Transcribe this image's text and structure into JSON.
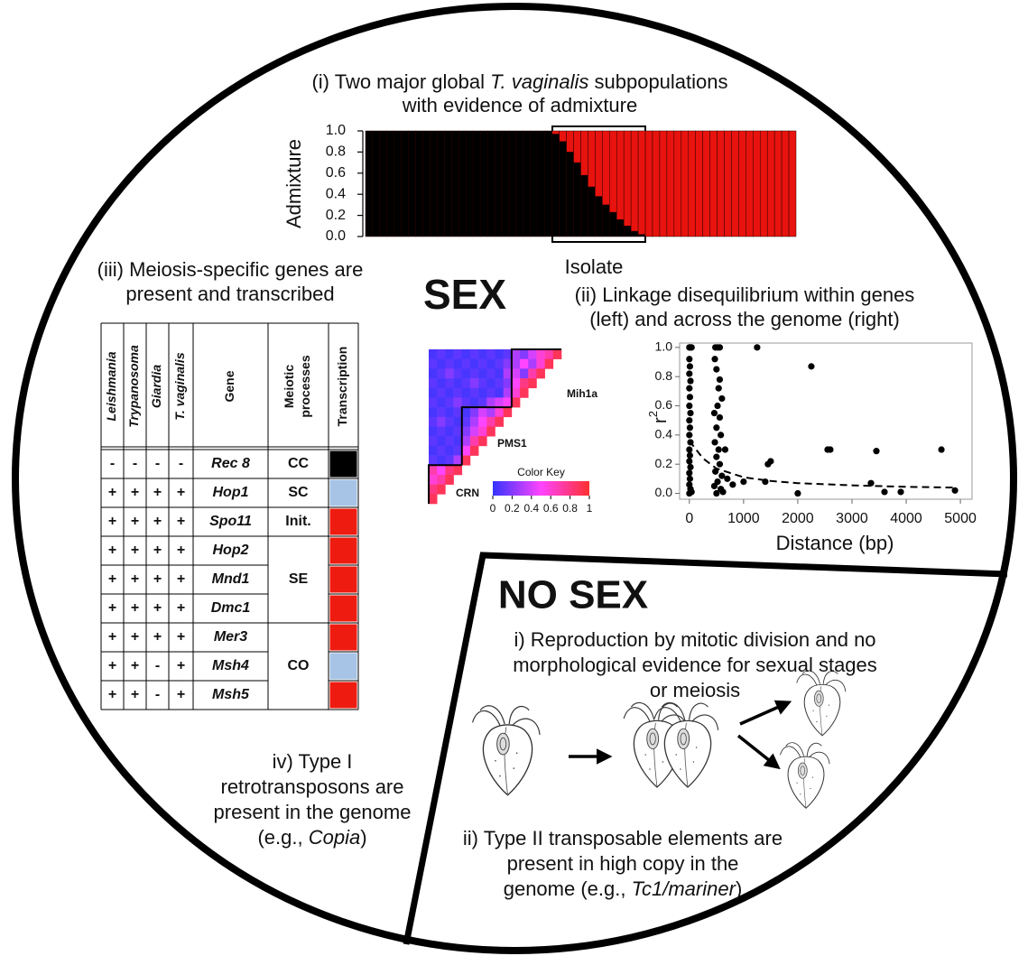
{
  "sex": {
    "heading": "SEX",
    "meiosis_caption": [
      "(iii) Meiosis-specific genes are",
      "present and transcribed"
    ],
    "ld_caption": [
      "(ii) Linkage disequilibrium within genes",
      "(left) and across the genome (right)"
    ],
    "retro_caption": [
      "iv) Type I",
      "retrotransposons are",
      "present in the genome",
      [
        {
          "t": "(e.g., "
        },
        {
          "t": "Copia",
          "i": true
        },
        {
          "t": ")"
        }
      ]
    ]
  },
  "no_sex": {
    "heading": "NO SEX",
    "reproduction_caption": [
      "i) Reproduction by mitotic division and no",
      "morphological evidence for sexual stages",
      "or meiosis"
    ],
    "transposon_caption": [
      "ii) Type II transposable elements are",
      "present in high copy in the",
      [
        {
          "t": "genome (e.g., "
        },
        {
          "t": "Tc1/mariner",
          "i": true
        },
        {
          "t": ")"
        }
      ]
    ]
  },
  "table": {
    "header": [
      "Leishmania",
      "Trypanosoma",
      "Giardia",
      "T. vaginalis",
      "Gene",
      [
        "Meiotic",
        "processes"
      ],
      "Transcription"
    ],
    "rows": [
      {
        "signs": [
          "-",
          "-",
          "-",
          "-"
        ],
        "gene": "Rec 8",
        "color": "#000000"
      },
      {
        "signs": [
          "+",
          "+",
          "+",
          "+"
        ],
        "gene": "Hop1",
        "color": "#a7c4e6"
      },
      {
        "signs": [
          "+",
          "+",
          "+",
          "+"
        ],
        "gene": "Spo11",
        "color": "#ee1c10"
      },
      {
        "signs": [
          "+",
          "+",
          "+",
          "+"
        ],
        "gene": "Hop2",
        "color": "#ee1c10"
      },
      {
        "signs": [
          "+",
          "+",
          "+",
          "+"
        ],
        "gene": "Mnd1",
        "color": "#ee1c10"
      },
      {
        "signs": [
          "+",
          "+",
          "+",
          "+"
        ],
        "gene": "Dmc1",
        "color": "#ee1c10"
      },
      {
        "signs": [
          "+",
          "+",
          "+",
          "+"
        ],
        "gene": "Mer3",
        "color": "#ee1c10"
      },
      {
        "signs": [
          "+",
          "+",
          "-",
          "+"
        ],
        "gene": "Msh4",
        "color": "#a7c4e6"
      },
      {
        "signs": [
          "+",
          "+",
          "-",
          "+"
        ],
        "gene": "Msh5",
        "color": "#ee1c10"
      }
    ],
    "processes": [
      {
        "label": "CC",
        "rows": 1
      },
      {
        "label": "SC",
        "rows": 1
      },
      {
        "label": "Init.",
        "rows": 1
      },
      {
        "label": "SE",
        "rows": 3
      },
      {
        "label": "CO",
        "rows": 3
      }
    ]
  },
  "chart_data": [
    {
      "type": "bar",
      "stacked": true,
      "title": [
        [
          {
            "t": "(i) Two major global "
          },
          {
            "t": "T. vaginalis",
            "i": true
          },
          {
            "t": " subpopulations"
          }
        ],
        "with evidence of admixture"
      ],
      "xlabel": "Isolate",
      "ylabel": "Admixture",
      "categories": [
        null,
        null,
        null,
        null,
        null,
        null,
        null,
        null,
        null,
        null,
        null,
        null,
        null,
        null,
        null,
        null,
        null,
        null,
        null,
        null,
        null,
        null,
        null,
        null,
        null,
        null,
        null,
        null,
        null,
        null,
        null,
        null,
        null,
        null,
        null,
        null,
        null,
        null,
        null,
        null,
        null,
        null,
        null,
        null,
        null,
        null,
        null,
        null,
        null,
        null,
        null,
        null,
        null,
        null,
        null,
        null,
        null,
        null,
        null,
        null
      ],
      "series": [
        {
          "color": "#000000",
          "values": [
            1,
            1,
            1,
            1,
            1,
            1,
            1,
            1,
            1,
            1,
            1,
            1,
            1,
            1,
            1,
            1,
            1,
            1,
            1,
            1,
            1,
            1,
            1,
            1,
            1,
            1,
            0.97,
            0.9,
            0.8,
            0.7,
            0.58,
            0.47,
            0.38,
            0.3,
            0.23,
            0.16,
            0.1,
            0.05,
            0.02,
            0,
            0,
            0,
            0,
            0,
            0,
            0,
            0,
            0,
            0,
            0,
            0,
            0,
            0,
            0,
            0,
            0,
            0,
            0,
            0,
            0
          ]
        },
        {
          "color": "#e8130e",
          "values": [
            0,
            0,
            0,
            0,
            0,
            0,
            0,
            0,
            0,
            0,
            0,
            0,
            0,
            0,
            0,
            0,
            0,
            0,
            0,
            0,
            0,
            0,
            0,
            0,
            0,
            0,
            0.03,
            0.1,
            0.2,
            0.3,
            0.42,
            0.53,
            0.62,
            0.7,
            0.77,
            0.84,
            0.9,
            0.95,
            0.98,
            1,
            1,
            1,
            1,
            1,
            1,
            1,
            1,
            1,
            1,
            1,
            1,
            1,
            1,
            1,
            1,
            1,
            1,
            1,
            1,
            1
          ]
        }
      ],
      "ylim": [
        0,
        1
      ],
      "yticks": [
        {
          "value": 1,
          "label": "1.0"
        },
        0.8,
        0.6,
        0.4,
        0.2,
        {
          "value": 0,
          "label": "0.0"
        }
      ]
    },
    {
      "type": "heatmap",
      "values": [
        [
          0.05,
          0.1,
          0.05,
          0.1,
          0.05,
          0.1,
          0.05,
          0.1,
          0.05,
          0.1,
          0.3,
          0.2,
          0.4,
          0.6,
          0.7,
          0.9
        ],
        [
          0.1,
          0.05,
          0.1,
          0.05,
          0.1,
          0.05,
          0.1,
          0.05,
          0.1,
          0.2,
          0.3,
          0.5,
          0.3,
          0.6,
          0.9
        ],
        [
          0.05,
          0.1,
          0.2,
          0.1,
          0.05,
          0.1,
          0.05,
          0.1,
          0.05,
          0.3,
          0.4,
          0.2,
          0.7,
          0.9
        ],
        [
          0.1,
          0.05,
          0.1,
          0.05,
          0.1,
          0.2,
          0.1,
          0.05,
          0.1,
          0.2,
          0.5,
          0.8,
          0.9
        ],
        [
          0.05,
          0.1,
          0.05,
          0.1,
          0.05,
          0.1,
          0.05,
          0.1,
          0.05,
          0.3,
          0.6,
          0.9
        ],
        [
          0.1,
          0.05,
          0.1,
          0.2,
          0.1,
          0.05,
          0.1,
          0.3,
          0.4,
          0.5,
          0.9
        ],
        [
          0.05,
          0.1,
          0.05,
          0.1,
          0.05,
          0.2,
          0.4,
          0.3,
          0.6,
          0.9
        ],
        [
          0.1,
          0.2,
          0.1,
          0.05,
          0.1,
          0.3,
          0.5,
          0.7,
          0.9
        ],
        [
          0.05,
          0.1,
          0.05,
          0.1,
          0.2,
          0.4,
          0.6,
          0.9
        ],
        [
          0.1,
          0.05,
          0.1,
          0.05,
          0.3,
          0.7,
          0.9
        ],
        [
          0.05,
          0.1,
          0.05,
          0.1,
          0.5,
          0.9
        ],
        [
          0.1,
          0.05,
          0.1,
          0.3,
          0.9
        ],
        [
          0.7,
          0.5,
          0.8,
          0.9
        ],
        [
          0.6,
          0.7,
          0.9
        ],
        [
          0.8,
          0.9
        ],
        [
          0.9
        ]
      ],
      "blocks": [
        "Mih1a",
        "PMS1",
        "CRN"
      ],
      "colormap": [
        "#3434ff",
        "#ff44ff",
        "#ff3030"
      ],
      "colorbar": {
        "title": "Color Key",
        "lim": [
          0,
          1
        ],
        "ticks": [
          0,
          0.2,
          0.4,
          0.6,
          0.8,
          1
        ]
      }
    },
    {
      "type": "scatter",
      "xlabel": "Distance (bp)",
      "ylabel": "r",
      "ylabel_sup": "2",
      "series": [
        {
          "mode": "points",
          "color": "#000000",
          "x": [
            0,
            20,
            40,
            0,
            10,
            0,
            20,
            0,
            10,
            0,
            20,
            0,
            10,
            0,
            20,
            0,
            10,
            0,
            20,
            0,
            10,
            0,
            20,
            0,
            40,
            480,
            520,
            560,
            470,
            500,
            560,
            540,
            600,
            520,
            460,
            560,
            500,
            580,
            470,
            540,
            660,
            500,
            560,
            480,
            600,
            520,
            460,
            580,
            500,
            620,
            700,
            800,
            1000,
            1250,
            1400,
            1450,
            1500,
            2000,
            2250,
            2550,
            2600,
            3350,
            3450,
            3600,
            3900,
            4650,
            4900
          ],
          "values": [
            1,
            1,
            1,
            0.92,
            0.87,
            0.82,
            0.77,
            0.72,
            0.66,
            0.6,
            0.55,
            0.5,
            0.45,
            0.4,
            0.35,
            0.3,
            0.26,
            0.22,
            0.18,
            0.14,
            0.1,
            0.06,
            0.03,
            0,
            0.01,
            1,
            1,
            1,
            0.92,
            0.85,
            0.78,
            0.72,
            0.65,
            0.6,
            0.55,
            0.52,
            0.45,
            0.4,
            0.35,
            0.3,
            0.3,
            0.25,
            0.2,
            0.15,
            0.12,
            0.08,
            0.05,
            0.03,
            0,
            0.01,
            0.1,
            0.06,
            0.08,
            1,
            0.08,
            0.2,
            0.22,
            0,
            0.87,
            0.3,
            0.3,
            0.07,
            0.29,
            0.01,
            0.01,
            0.3,
            0.02
          ]
        },
        {
          "mode": "dashed",
          "color": "#000000",
          "x": [
            0,
            250,
            500,
            1000,
            1500,
            2000,
            3000,
            4000,
            4900
          ],
          "values": [
            0.36,
            0.24,
            0.17,
            0.11,
            0.085,
            0.07,
            0.055,
            0.045,
            0.04
          ]
        }
      ],
      "xlim": [
        -180,
        5215
      ],
      "ylim": [
        -0.04,
        1.03
      ],
      "xticks": [
        0,
        1000,
        2000,
        3000,
        4000,
        5000
      ],
      "yticks": [
        {
          "value": 1,
          "label": "1.0"
        },
        0.8,
        0.6,
        0.4,
        0.2,
        {
          "value": 0,
          "label": "0.0"
        }
      ]
    }
  ]
}
